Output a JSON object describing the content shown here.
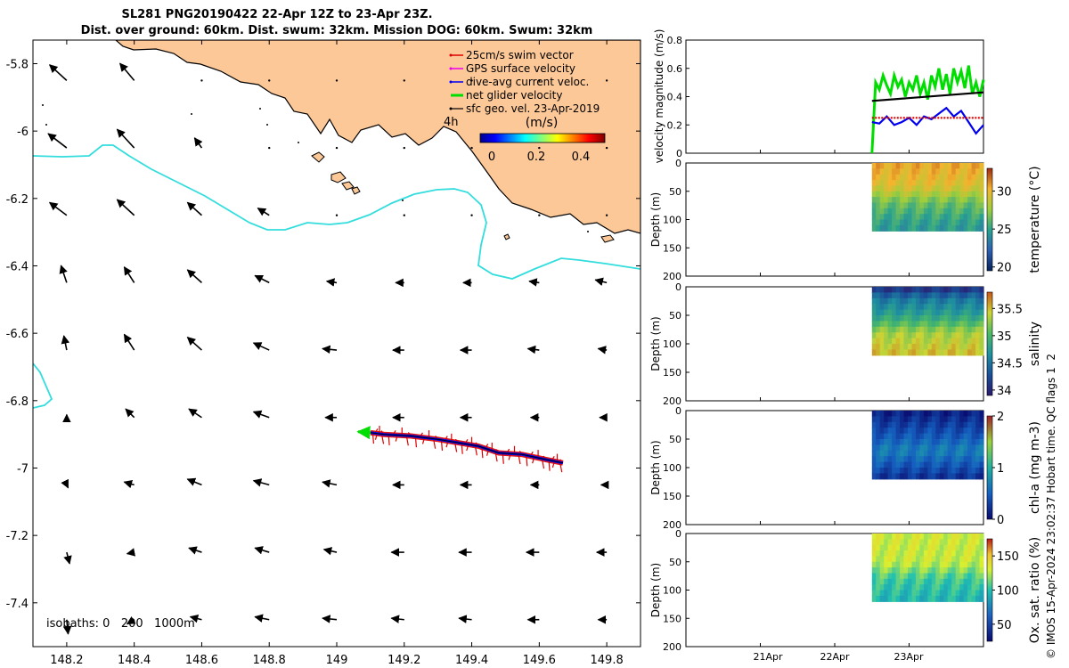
{
  "title": {
    "line1": "SL281 PNG20190422 22-Apr 12Z to 23-Apr 23Z.",
    "line2": "Dist. over ground: 60km. Dist. swum: 32km. Mission DOG: 60km. Swum: 32km"
  },
  "colors": {
    "land": "#fdc898",
    "coast": "#000000",
    "isobath": "#33dddd",
    "swim_vector": "#dd0000",
    "gps_velocity": "#ee00ee",
    "dive_avg": "#0000ee",
    "net_velocity": "#00dd00",
    "geo_vel": "#000000"
  },
  "chart_data": [
    {
      "type": "map",
      "xlim": [
        148.1,
        149.9
      ],
      "ylim": [
        -7.53,
        -5.73
      ],
      "x_ticks": [
        148.2,
        148.4,
        148.6,
        148.8,
        149,
        149.2,
        149.4,
        149.6,
        149.8
      ],
      "x_tick_labels": [
        "148.2",
        "148.4",
        "148.6",
        "148.8",
        "149",
        "149.2",
        "149.4",
        "149.6",
        "149.8"
      ],
      "y_ticks": [
        -5.8,
        -6,
        -6.2,
        -6.4,
        -6.6,
        -6.8,
        -7,
        -7.2,
        -7.4
      ],
      "y_tick_labels": [
        "-5.8",
        "-6",
        "-6.2",
        "-6.4",
        "-6.6",
        "-6.8",
        "-7",
        "-7.2",
        "-7.4"
      ],
      "legend": [
        {
          "label": "25cm/s swim vector",
          "color": "#dd0000"
        },
        {
          "label": "GPS surface velocity",
          "color": "#ee00ee"
        },
        {
          "label": "dive-avg current veloc.",
          "color": "#0000ee"
        },
        {
          "label": "net glider velocity",
          "color": "#00dd00"
        },
        {
          "label": "sfc geo. vel. 23-Apr-2019",
          "color": "#000000"
        }
      ],
      "legend_extra": "4h",
      "colorbar": {
        "label": "(m/s)",
        "ticks": [
          "0",
          "0.2",
          "0.4"
        ],
        "range": [
          0,
          0.5
        ]
      },
      "isobaths_label": "isobaths: 0   200   1000m",
      "vector_grid": {
        "lons": [
          148.2,
          148.4,
          148.6,
          148.8,
          149.0,
          149.2,
          149.4,
          149.6,
          149.8
        ],
        "lats": [
          -5.85,
          -6.05,
          -6.25,
          -6.45,
          -6.65,
          -6.85,
          -7.05,
          -7.25,
          -7.45
        ],
        "u": [
          [
            -0.12,
            -0.1,
            0.0,
            0,
            0,
            0,
            0,
            0,
            0
          ],
          [
            -0.13,
            -0.12,
            -0.05,
            0.0,
            0,
            0,
            0,
            0,
            0
          ],
          [
            -0.12,
            -0.12,
            -0.1,
            -0.08,
            0,
            0,
            0,
            0,
            0
          ],
          [
            -0.04,
            -0.07,
            -0.1,
            -0.1,
            -0.07,
            -0.06,
            -0.06,
            -0.07,
            -0.08
          ],
          [
            -0.02,
            -0.07,
            -0.1,
            -0.11,
            -0.1,
            -0.08,
            -0.08,
            -0.08,
            -0.06
          ],
          [
            0.0,
            -0.06,
            -0.09,
            -0.11,
            -0.08,
            -0.08,
            -0.08,
            -0.06,
            -0.05
          ],
          [
            0.01,
            -0.07,
            -0.1,
            -0.11,
            -0.1,
            -0.08,
            -0.08,
            -0.06,
            -0.04
          ],
          [
            0.02,
            -0.05,
            -0.09,
            -0.1,
            -0.09,
            -0.09,
            -0.09,
            -0.09,
            -0.07
          ],
          [
            0.01,
            -0.05,
            -0.08,
            -0.1,
            -0.1,
            -0.09,
            -0.09,
            -0.08,
            -0.06
          ]
        ],
        "v": [
          [
            0.11,
            0.12,
            0.0,
            0,
            0,
            0,
            0,
            0,
            0
          ],
          [
            0.1,
            0.13,
            0.07,
            0.0,
            0,
            0,
            0,
            0,
            0
          ],
          [
            0.09,
            0.11,
            0.09,
            0.05,
            0,
            0,
            0,
            0,
            0
          ],
          [
            0.12,
            0.11,
            0.09,
            0.05,
            0.01,
            0.0,
            0.0,
            0.01,
            0.02
          ],
          [
            0.1,
            0.11,
            0.09,
            0.05,
            0.01,
            0.0,
            0.0,
            0.01,
            0.01
          ],
          [
            0.02,
            0.06,
            0.06,
            0.04,
            0.0,
            0.0,
            0.0,
            0.0,
            0.0
          ],
          [
            -0.02,
            0.02,
            0.04,
            0.03,
            0.02,
            0.0,
            0.0,
            0.0,
            0.0
          ],
          [
            -0.08,
            -0.01,
            0.03,
            0.03,
            0.02,
            0.0,
            0.0,
            0.0,
            0.0
          ],
          [
            -0.1,
            -0.03,
            0.02,
            0.02,
            0.01,
            0.01,
            0.01,
            0.0,
            0.0
          ]
        ]
      },
      "glider_track": {
        "lon": [
          149.67,
          149.62,
          149.55,
          149.48,
          149.42,
          149.36,
          149.3,
          149.22,
          149.14,
          149.1
        ],
        "lat": [
          -6.985,
          -6.975,
          -6.96,
          -6.955,
          -6.935,
          -6.925,
          -6.915,
          -6.905,
          -6.9,
          -6.895
        ]
      }
    },
    {
      "type": "line",
      "ylabel": "velocity magnitude (m/s)",
      "ylim": [
        0,
        0.8
      ],
      "y_ticks": [
        "0",
        "0.2",
        "0.4",
        "0.6",
        "0.8"
      ],
      "x_ticks": [
        "21Apr",
        "22Apr",
        "23Apr"
      ],
      "xlim_days": [
        20.0,
        24.0
      ],
      "series": [
        {
          "color": "#00dd00",
          "t": [
            22.5,
            22.55,
            22.6,
            22.65,
            22.7,
            22.75,
            22.8,
            22.85,
            22.9,
            22.95,
            23.0,
            23.05,
            23.1,
            23.15,
            23.2,
            23.25,
            23.3,
            23.35,
            23.4,
            23.45,
            23.5,
            23.55,
            23.6,
            23.65,
            23.7,
            23.75,
            23.8,
            23.85,
            23.9,
            23.95,
            24.0
          ],
          "values": [
            0,
            0.5,
            0.45,
            0.55,
            0.48,
            0.42,
            0.55,
            0.47,
            0.52,
            0.4,
            0.5,
            0.45,
            0.55,
            0.42,
            0.5,
            0.38,
            0.55,
            0.47,
            0.6,
            0.45,
            0.56,
            0.42,
            0.6,
            0.5,
            0.58,
            0.46,
            0.62,
            0.42,
            0.5,
            0.4,
            0.52
          ]
        },
        {
          "color": "#0000ee",
          "t": [
            22.5,
            22.6,
            22.7,
            22.8,
            22.9,
            23.0,
            23.1,
            23.2,
            23.3,
            23.4,
            23.5,
            23.6,
            23.7,
            23.8,
            23.9,
            24.0
          ],
          "values": [
            0.22,
            0.21,
            0.26,
            0.2,
            0.22,
            0.25,
            0.2,
            0.26,
            0.24,
            0.28,
            0.32,
            0.26,
            0.3,
            0.22,
            0.14,
            0.2
          ]
        },
        {
          "color": "#000000",
          "t": [
            22.5,
            24.0
          ],
          "values": [
            0.37,
            0.43
          ]
        },
        {
          "color": "#dd0000",
          "t": [
            22.5,
            24.0
          ],
          "values": [
            0.25,
            0.25
          ]
        }
      ]
    },
    {
      "type": "heatmap",
      "ylabel": "Depth (m)",
      "y_ticks": [
        "0",
        "50",
        "100",
        "150",
        "200"
      ],
      "colorbar_label": "temperature (°C)",
      "colorbar_ticks": [
        "30",
        "25",
        "20"
      ],
      "clim": [
        19.5,
        33
      ],
      "profile_days": [
        22.5,
        24.0
      ],
      "max_depth": 120,
      "depth_bands": [
        {
          "depth": 0,
          "value": 30.5
        },
        {
          "depth": 40,
          "value": 29.5
        },
        {
          "depth": 70,
          "value": 26.5
        },
        {
          "depth": 100,
          "value": 25
        },
        {
          "depth": 120,
          "value": 24.5
        }
      ]
    },
    {
      "type": "heatmap",
      "ylabel": "Depth (m)",
      "y_ticks": [
        "0",
        "50",
        "100",
        "150",
        "200"
      ],
      "colorbar_label": "salinity",
      "colorbar_ticks": [
        "35.5",
        "35",
        "34.5",
        "34"
      ],
      "clim": [
        33.9,
        35.8
      ],
      "profile_days": [
        22.5,
        24.0
      ],
      "max_depth": 120,
      "depth_bands": [
        {
          "depth": 0,
          "value": 34.0
        },
        {
          "depth": 20,
          "value": 34.5
        },
        {
          "depth": 50,
          "value": 34.8
        },
        {
          "depth": 80,
          "value": 35.3
        },
        {
          "depth": 120,
          "value": 35.5
        }
      ]
    },
    {
      "type": "heatmap",
      "ylabel": "Depth (m)",
      "y_ticks": [
        "0",
        "50",
        "100",
        "150",
        "200"
      ],
      "colorbar_label": "chl-a (mg m-3)",
      "colorbar_ticks": [
        "2",
        "1",
        "0"
      ],
      "clim": [
        0,
        2
      ],
      "profile_days": [
        22.5,
        24.0
      ],
      "max_depth": 120,
      "depth_bands": [
        {
          "depth": 0,
          "value": 0.1
        },
        {
          "depth": 50,
          "value": 0.5
        },
        {
          "depth": 70,
          "value": 0.7
        },
        {
          "depth": 100,
          "value": 0.4
        },
        {
          "depth": 120,
          "value": 0.2
        }
      ]
    },
    {
      "type": "heatmap",
      "ylabel": "Depth (m)",
      "y_ticks": [
        "0",
        "50",
        "100",
        "150",
        "200"
      ],
      "colorbar_label": "Ox. sat. ratio (%)",
      "colorbar_ticks": [
        "150",
        "100",
        "50"
      ],
      "clim": [
        25,
        175
      ],
      "profile_days": [
        22.5,
        24.0
      ],
      "max_depth": 120,
      "depth_bands": [
        {
          "depth": 0,
          "value": 130
        },
        {
          "depth": 50,
          "value": 128
        },
        {
          "depth": 80,
          "value": 105
        },
        {
          "depth": 120,
          "value": 95
        }
      ]
    }
  ],
  "credit": "© IMOS 15-Apr-2024 23:02:37 Hobart time. QC flags 1  2"
}
